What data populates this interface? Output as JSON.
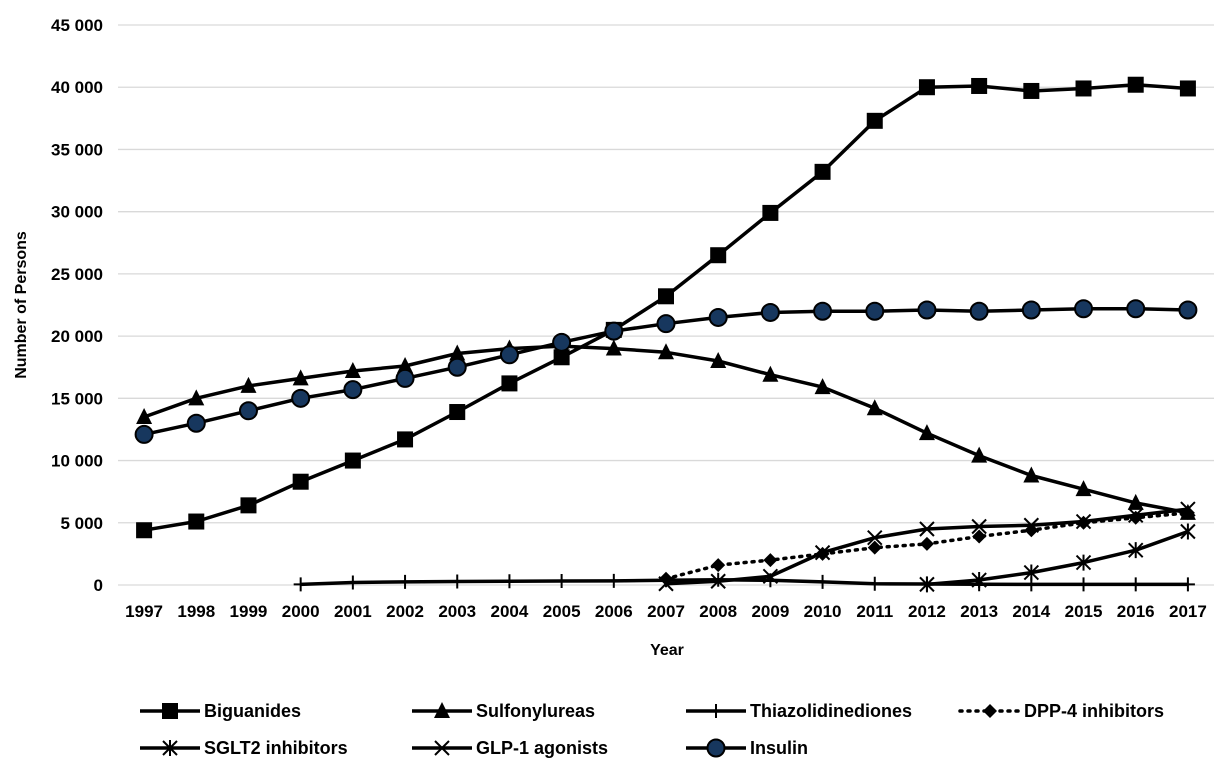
{
  "chart_data": {
    "type": "line",
    "xlabel": "Year",
    "ylabel": "Number of Persons",
    "ylim": [
      0,
      45000
    ],
    "yticks": [
      0,
      5000,
      10000,
      15000,
      20000,
      25000,
      30000,
      35000,
      40000,
      45000
    ],
    "ytick_labels": [
      "0",
      "5 000",
      "10 000",
      "15 000",
      "20 000",
      "25 000",
      "30 000",
      "35 000",
      "40 000",
      "45 000"
    ],
    "categories": [
      "1997",
      "1998",
      "1999",
      "2000",
      "2001",
      "2002",
      "2003",
      "2004",
      "2005",
      "2006",
      "2007",
      "2008",
      "2009",
      "2010",
      "2011",
      "2012",
      "2013",
      "2014",
      "2015",
      "2016",
      "2017"
    ],
    "grid": "horizontal",
    "legend_position": "bottom",
    "series": [
      {
        "name": "Biguanides",
        "marker": "square",
        "dash": "solid",
        "color": "#000000",
        "values": [
          4400,
          5100,
          6400,
          8300,
          10000,
          11700,
          13900,
          16200,
          18300,
          20500,
          23200,
          26500,
          29900,
          33200,
          37300,
          40000,
          40100,
          39700,
          39900,
          40200,
          39900
        ]
      },
      {
        "name": "Sulfonylureas",
        "marker": "triangle",
        "dash": "solid",
        "color": "#000000",
        "values": [
          13500,
          15000,
          16000,
          16600,
          17200,
          17600,
          18600,
          19000,
          19200,
          19000,
          18700,
          18000,
          16900,
          15900,
          14200,
          12200,
          10400,
          8800,
          7700,
          6600,
          5800
        ]
      },
      {
        "name": "Thiazolidinediones",
        "marker": "plus",
        "dash": "solid",
        "color": "#000000",
        "values": [
          null,
          null,
          null,
          50,
          200,
          250,
          280,
          300,
          320,
          330,
          380,
          420,
          380,
          250,
          100,
          80,
          60,
          50,
          50,
          50,
          50
        ]
      },
      {
        "name": "DPP-4 inhibitors",
        "marker": "diamond",
        "dash": "dotted",
        "color": "#000000",
        "values": [
          null,
          null,
          null,
          null,
          null,
          null,
          null,
          null,
          null,
          null,
          500,
          1600,
          2000,
          2500,
          3000,
          3300,
          3900,
          4400,
          5000,
          5400,
          5800
        ]
      },
      {
        "name": "SGLT2 inhibitors",
        "marker": "asterisk",
        "dash": "solid",
        "color": "#000000",
        "values": [
          null,
          null,
          null,
          null,
          null,
          null,
          null,
          null,
          null,
          null,
          null,
          null,
          null,
          null,
          null,
          50,
          400,
          1000,
          1800,
          2800,
          4300
        ]
      },
      {
        "name": "GLP-1  agonists",
        "marker": "x",
        "dash": "solid",
        "color": "#000000",
        "values": [
          null,
          null,
          null,
          null,
          null,
          null,
          null,
          null,
          null,
          null,
          100,
          300,
          700,
          2600,
          3800,
          4500,
          4700,
          4800,
          5100,
          5600,
          6100
        ]
      },
      {
        "name": "Insulin",
        "marker": "circle",
        "dash": "solid",
        "color": "#000000",
        "marker_fill": "#17375e",
        "values": [
          12100,
          13000,
          14000,
          15000,
          15700,
          16600,
          17500,
          18500,
          19500,
          20400,
          21000,
          21500,
          21900,
          22000,
          22000,
          22100,
          22000,
          22100,
          22200,
          22200,
          22100
        ]
      }
    ]
  }
}
